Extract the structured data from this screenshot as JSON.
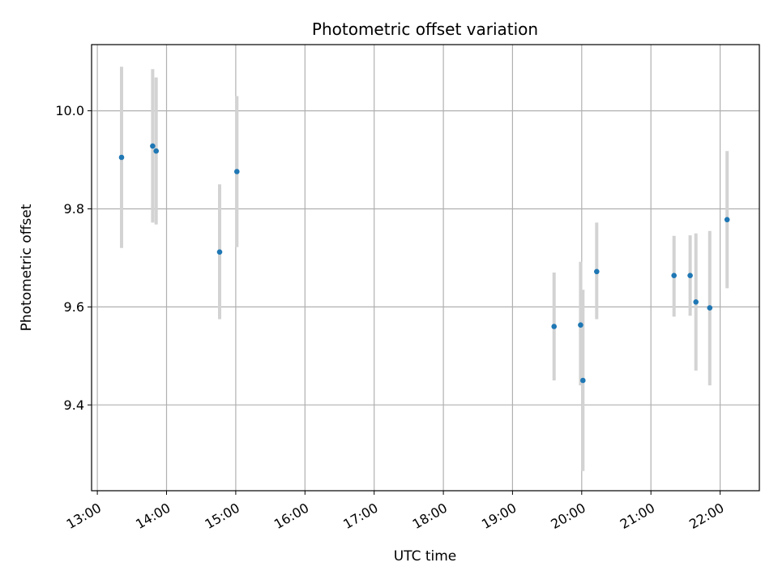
{
  "chart_data": {
    "type": "scatter",
    "title": "Photometric offset variation",
    "xlabel": "UTC time",
    "ylabel": "Photometric offset",
    "xlim": [
      "12:55",
      "22:34"
    ],
    "ylim": [
      9.225,
      10.135
    ],
    "x_ticks": [
      "13:00",
      "14:00",
      "15:00",
      "16:00",
      "17:00",
      "18:00",
      "19:00",
      "20:00",
      "21:00",
      "22:00"
    ],
    "y_ticks": [
      9.4,
      9.6,
      9.8,
      10.0
    ],
    "y_tick_labels": [
      "9.4",
      "9.6",
      "9.8",
      "10.0"
    ],
    "grid": true,
    "marker_color": "#1f77b4",
    "errorbar_color": "#d3d3d3",
    "points": [
      {
        "x": "13:21",
        "y": 9.905,
        "yerr_low": 9.72,
        "yerr_high": 10.09
      },
      {
        "x": "13:48",
        "y": 9.928,
        "yerr_low": 9.772,
        "yerr_high": 10.085
      },
      {
        "x": "13:51",
        "y": 9.918,
        "yerr_low": 9.768,
        "yerr_high": 10.068
      },
      {
        "x": "14:46",
        "y": 9.712,
        "yerr_low": 9.575,
        "yerr_high": 9.85
      },
      {
        "x": "15:01",
        "y": 9.876,
        "yerr_low": 9.722,
        "yerr_high": 10.03
      },
      {
        "x": "19:36",
        "y": 9.56,
        "yerr_low": 9.45,
        "yerr_high": 9.67
      },
      {
        "x": "19:59",
        "y": 9.563,
        "yerr_low": 9.44,
        "yerr_high": 9.692
      },
      {
        "x": "20:01",
        "y": 9.45,
        "yerr_low": 9.265,
        "yerr_high": 9.635
      },
      {
        "x": "20:13",
        "y": 9.672,
        "yerr_low": 9.575,
        "yerr_high": 9.772
      },
      {
        "x": "21:20",
        "y": 9.664,
        "yerr_low": 9.58,
        "yerr_high": 9.745
      },
      {
        "x": "21:34",
        "y": 9.664,
        "yerr_low": 9.582,
        "yerr_high": 9.746
      },
      {
        "x": "21:39",
        "y": 9.61,
        "yerr_low": 9.47,
        "yerr_high": 9.75
      },
      {
        "x": "21:51",
        "y": 9.598,
        "yerr_low": 9.44,
        "yerr_high": 9.755
      },
      {
        "x": "22:06",
        "y": 9.778,
        "yerr_low": 9.638,
        "yerr_high": 9.918
      }
    ]
  }
}
